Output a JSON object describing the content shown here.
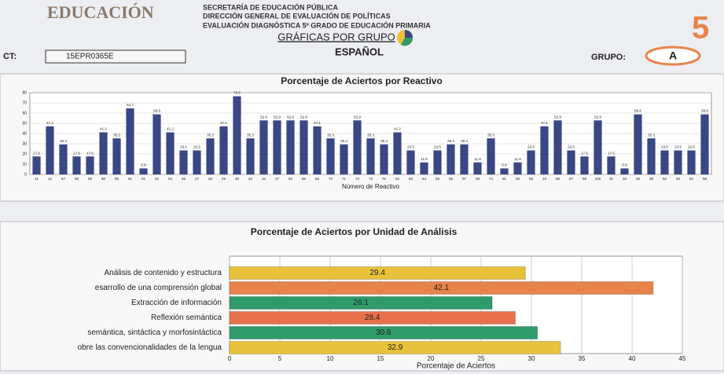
{
  "header": {
    "logo": "EDUCACIÓN",
    "lines": [
      "SECRETARÍA DE EDUCACIÓN PÚBLICA",
      "DIRECCIÓN GENERAL DE EVALUACIÓN DE POLÍTICAS",
      "EVALUACIÓN DIAGNÓSTICA 5º GRADO DE EDUCACIÓN PRIMARIA"
    ],
    "link": "GRÁFICAS POR GRUPO",
    "subject": "ESPAÑOL",
    "cct_label": "CT:",
    "cct": "15EPR0365E",
    "group_label": "GRUPO:",
    "group": "A",
    "grade_logo": "5"
  },
  "chart_data": [
    {
      "type": "bar",
      "orientation": "vertical",
      "title": "Porcentaje de Aciertos por Reactivo",
      "x_label": "Número de Reactivo",
      "color": "#3a4785",
      "categories": [
        "11",
        "12",
        "67",
        "68",
        "69",
        "80",
        "90",
        "91",
        "01",
        "02",
        "04",
        "26",
        "27",
        "28",
        "29",
        "30",
        "32",
        "34",
        "37",
        "63",
        "65",
        "66",
        "70",
        "71",
        "72",
        "73",
        "75",
        "82",
        "83",
        "84",
        "05",
        "06",
        "07",
        "08",
        "74",
        "81",
        "85",
        "58",
        "10",
        "86",
        "87",
        "99",
        "100",
        "31",
        "33",
        "36",
        "38",
        "92",
        "93",
        "94",
        "98"
      ],
      "values": [
        17.6,
        47.1,
        29.4,
        17.6,
        17.6,
        41.2,
        35.3,
        64.7,
        5.9,
        58.8,
        41.2,
        23.5,
        23.5,
        35.3,
        47.1,
        76.5,
        35.3,
        52.9,
        52.9,
        52.9,
        52.9,
        47.1,
        35.3,
        29.4,
        52.9,
        35.3,
        29.4,
        41.2,
        23.5,
        11.8,
        23.5,
        29.4,
        29.4,
        11.8,
        35.3,
        5.9,
        11.8,
        23.5,
        47.1,
        52.9,
        23.5,
        17.6,
        52.9,
        17.6,
        5.9,
        58.8,
        35.3,
        23.5,
        23.5,
        23.5,
        58.8
      ],
      "ylim": [
        0,
        80
      ],
      "yticks": [
        0,
        10,
        20,
        30,
        40,
        50,
        60,
        70,
        80
      ],
      "grid": true
    },
    {
      "type": "bar",
      "orientation": "horizontal",
      "title": "Porcentaje de Aciertos por Unidad de Análisis",
      "x_label": "Porcentaje de Aciertos",
      "categories": [
        "Análisis de contenido y estructura",
        "esarrollo de una comprensión global",
        "Extracción de información",
        "Reflexión semántica",
        "semántica, sintáctica y morfosintáctica",
        "obre las convencionalidades de la lengua"
      ],
      "values": [
        29.4,
        42.1,
        26.1,
        28.4,
        30.6,
        32.9
      ],
      "colors": [
        "#e8c23a",
        "#e8834a",
        "#2f9a6a",
        "#e8704a",
        "#2f9a6a",
        "#e8c23a"
      ],
      "xlim": [
        0,
        45
      ],
      "xticks": [
        0,
        5,
        10,
        15,
        20,
        25,
        30,
        35,
        40,
        45
      ],
      "grid": true
    }
  ]
}
